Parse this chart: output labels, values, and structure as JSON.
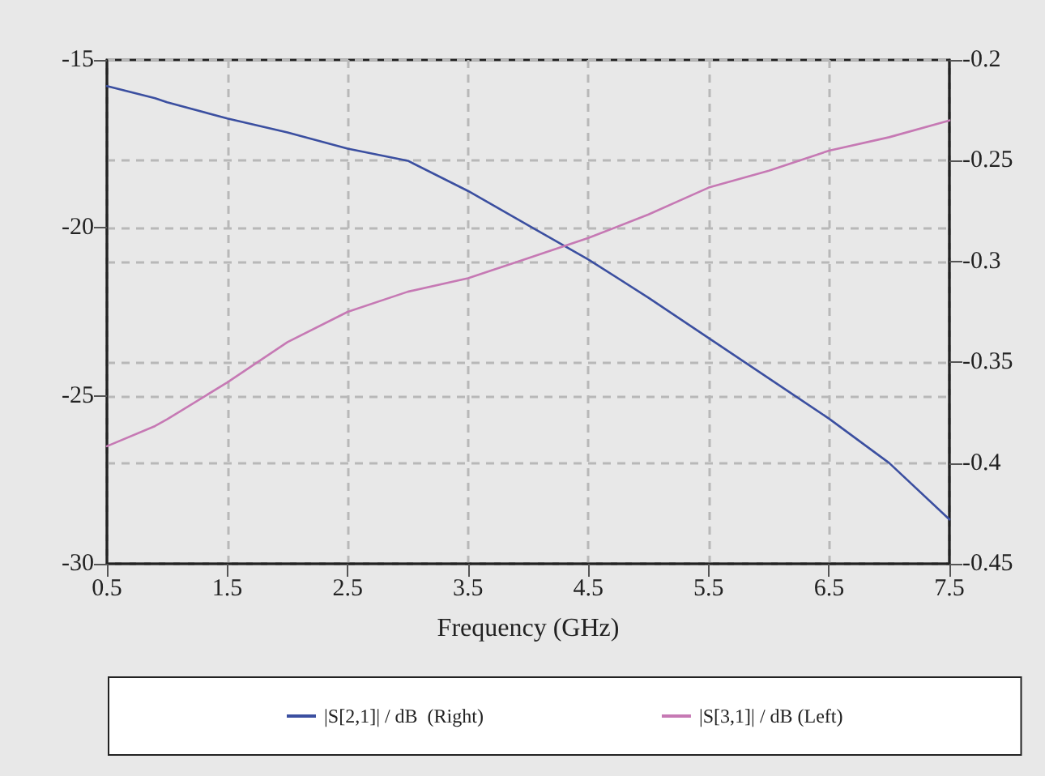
{
  "chart_data": {
    "type": "line",
    "xlabel": "Frequency (GHz)",
    "x": [
      0.5,
      0.9,
      1.0,
      1.5,
      2.0,
      2.5,
      3.0,
      3.5,
      4.0,
      4.5,
      5.0,
      5.5,
      6.0,
      6.5,
      7.0,
      7.5
    ],
    "series": [
      {
        "name": "|S[2,1]| / dB  (Right)",
        "color": "#3b4fa0",
        "axis": "y2",
        "values": [
          -0.213,
          -0.219,
          -0.221,
          -0.229,
          -0.236,
          -0.244,
          -0.25,
          -0.265,
          -0.282,
          -0.299,
          -0.318,
          -0.338,
          -0.358,
          -0.378,
          -0.4,
          -0.428
        ]
      },
      {
        "name": "|S[3,1]| / dB (Left)",
        "color": "#c679b4",
        "values": [
          -26.5,
          -25.9,
          -25.7,
          -24.6,
          -23.4,
          -22.5,
          -21.9,
          -21.5,
          -20.9,
          -20.3,
          -19.6,
          -18.8,
          -18.3,
          -17.7,
          -17.3,
          -16.8
        ]
      }
    ],
    "xlim": [
      0.5,
      7.5
    ],
    "xticks": [
      0.5,
      1.5,
      2.5,
      3.5,
      4.5,
      5.5,
      6.5,
      7.5
    ],
    "ylim": [
      -30,
      -15
    ],
    "yticks": [
      -30,
      -25,
      -20,
      -15
    ],
    "y2lim": [
      -0.45,
      -0.2
    ],
    "y2ticks": [
      -0.45,
      -0.4,
      -0.35,
      -0.3,
      -0.25,
      -0.2
    ],
    "grid": true,
    "legend": "bottom",
    "marker": "none",
    "line_style": "solid"
  }
}
